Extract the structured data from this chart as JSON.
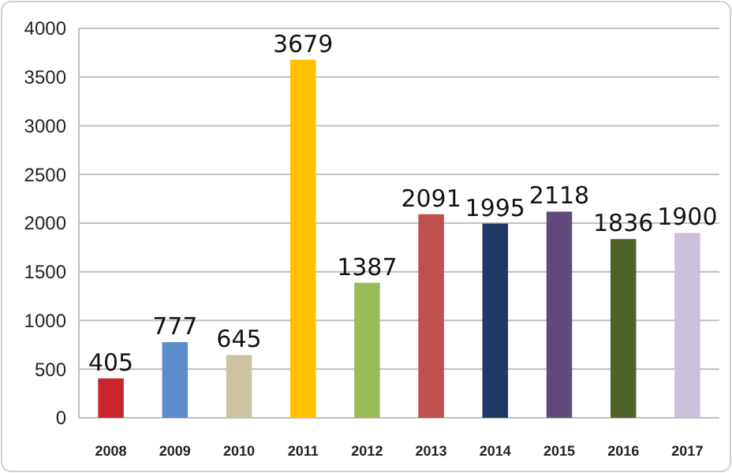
{
  "chart_data": {
    "type": "bar",
    "categories": [
      "2008",
      "2009",
      "2010",
      "2011",
      "2012",
      "2013",
      "2014",
      "2015",
      "2016",
      "2017"
    ],
    "values": [
      405,
      777,
      645,
      3679,
      1387,
      2091,
      1995,
      2118,
      1836,
      1900
    ],
    "colors": [
      "#c9252b",
      "#5b8ccb",
      "#cbc3a2",
      "#ffc000",
      "#9bbb59",
      "#c0504d",
      "#1f3864",
      "#604a7b",
      "#4f6228",
      "#ccc0da"
    ],
    "ylim": [
      0,
      4000
    ],
    "yticks": [
      0,
      500,
      1000,
      1500,
      2000,
      2500,
      3000,
      3500,
      4000
    ],
    "grid": "y",
    "data_labels": true
  }
}
